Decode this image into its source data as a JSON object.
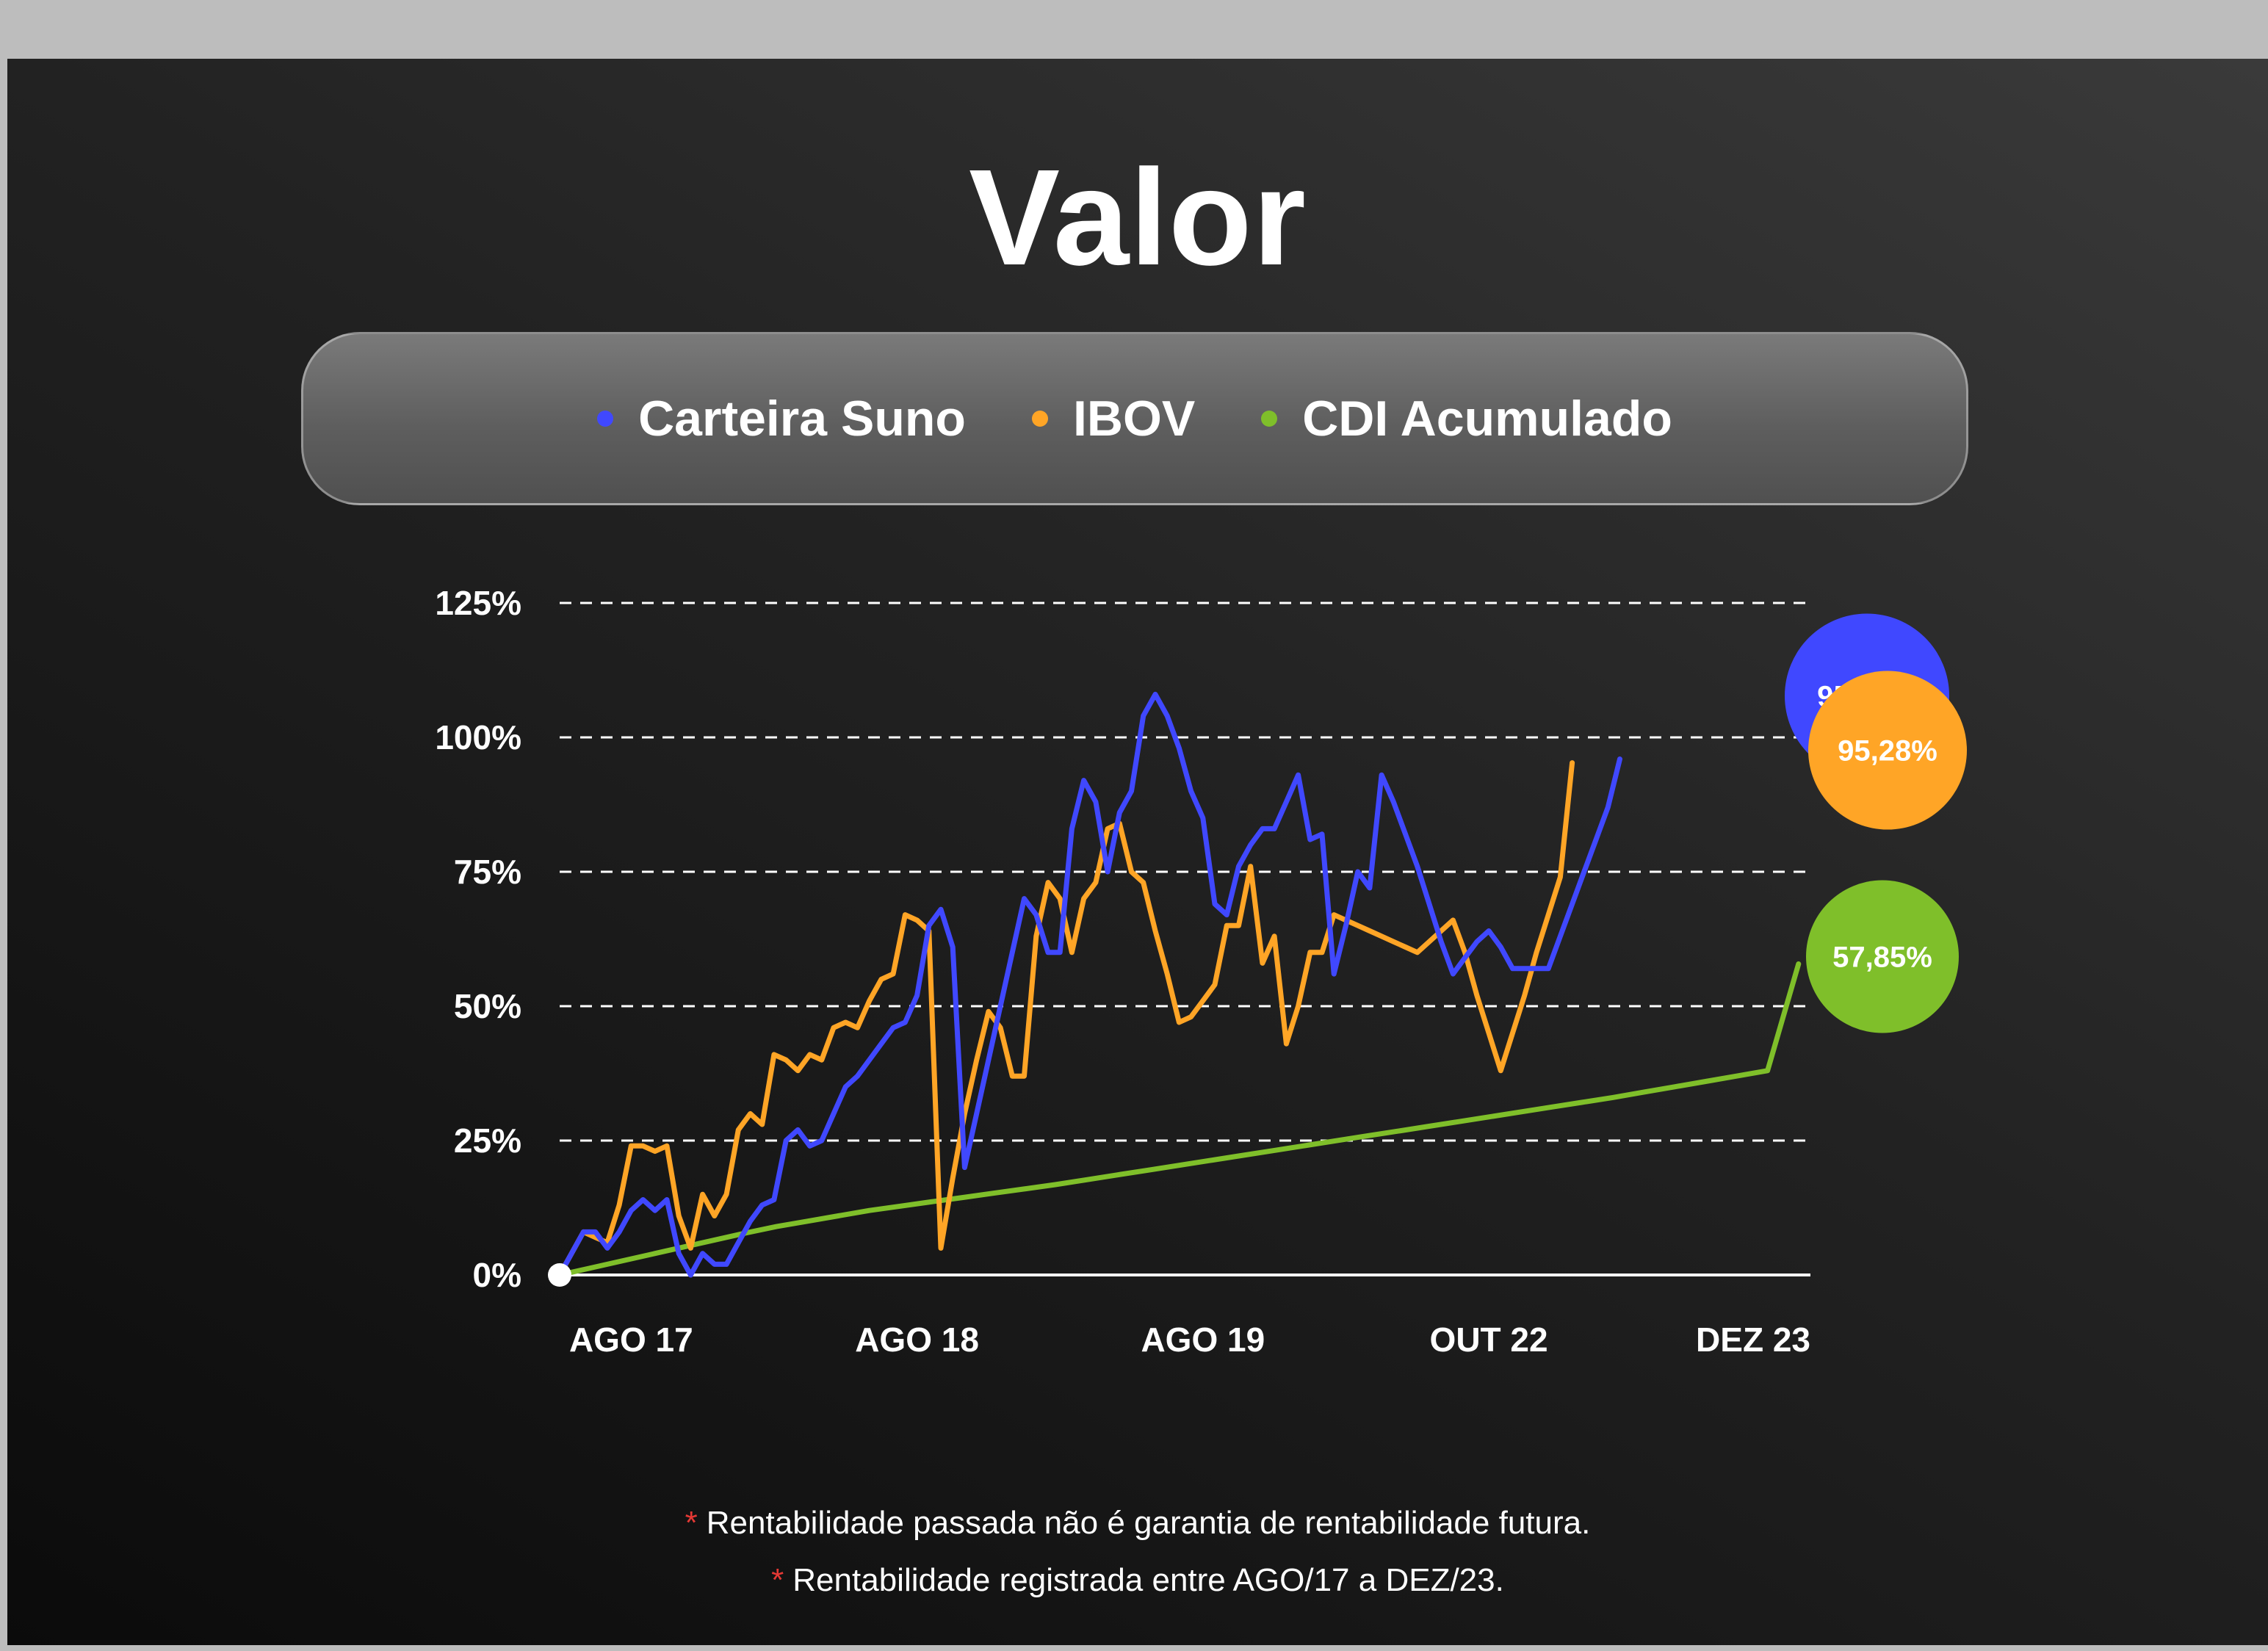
{
  "title": "Valor",
  "legend": [
    {
      "label": "Carteira Suno",
      "color": "#4048ff",
      "icon": "dot"
    },
    {
      "label": "IBOV",
      "color": "#ffa526",
      "icon": "dot"
    },
    {
      "label": "CDI Acumulado",
      "color": "#7fbf2a",
      "icon": "dot"
    }
  ],
  "footnotes": [
    {
      "star": "*",
      "text": "Rentabilidade passada não é garantia de rentabilidade futura."
    },
    {
      "star": "*",
      "text": "Rentabilidade registrada entre AGO/17 a DEZ/23."
    }
  ],
  "chart_data": {
    "type": "line",
    "ylim": [
      0,
      125
    ],
    "y_ticks": [
      "125%",
      "100%",
      "75%",
      "50%",
      "25%",
      "0%"
    ],
    "y_tick_values": [
      125,
      100,
      75,
      50,
      25,
      0
    ],
    "x_ticks": [
      "AGO 17",
      "AGO 18",
      "AGO 19",
      "OUT 22",
      "DEZ 23"
    ],
    "x_tick_index": [
      6,
      30,
      54,
      78,
      104
    ],
    "grid": "dashed horizontal",
    "series": [
      {
        "name": "Carteira Suno",
        "color": "#4048ff",
        "end_label": "95,97%",
        "values": [
          0,
          4,
          8,
          8,
          5,
          8,
          12,
          14,
          12,
          14,
          4,
          0,
          4,
          2,
          2,
          6,
          10,
          13,
          14,
          25,
          27,
          24,
          25,
          30,
          35,
          37,
          40,
          43,
          46,
          47,
          52,
          65,
          68,
          61,
          20,
          30,
          40,
          50,
          60,
          70,
          67,
          60,
          60,
          83,
          92,
          88,
          75,
          86,
          90,
          104,
          108,
          104,
          98,
          90,
          85,
          69,
          67,
          76,
          80,
          83,
          83,
          88,
          93,
          81,
          82,
          56,
          65,
          75,
          72,
          93,
          88,
          82,
          76,
          69,
          62,
          56,
          59,
          62,
          64,
          61,
          57,
          57,
          57,
          57,
          63,
          69,
          75,
          81,
          87,
          95.97
        ]
      },
      {
        "name": "IBOV",
        "color": "#ffa526",
        "end_label": "95,28%",
        "values": [
          0,
          4,
          8,
          7,
          6,
          13,
          24,
          24,
          23,
          24,
          11,
          5,
          15,
          11,
          15,
          27,
          30,
          28,
          41,
          40,
          38,
          41,
          40,
          46,
          47,
          46,
          51,
          55,
          56,
          67,
          66,
          64,
          5,
          18,
          30,
          40,
          49,
          46,
          37,
          37,
          63,
          73,
          70,
          60,
          70,
          73,
          83,
          84,
          75,
          73,
          64,
          56,
          47,
          48,
          51,
          54,
          65,
          65,
          76,
          58,
          63,
          43,
          50,
          60,
          60,
          67,
          66,
          65,
          64,
          63,
          62,
          61,
          60,
          62,
          64,
          66,
          60,
          52,
          45,
          38,
          45,
          52,
          60,
          67,
          74,
          95.28
        ]
      },
      {
        "name": "CDI Acumulado",
        "color": "#7fbf2a",
        "end_label": "57,85%",
        "values": [
          0,
          1.3,
          2.6,
          3.9,
          5.2,
          6.5,
          7.8,
          9.0,
          10.0,
          11.0,
          12.0,
          12.8,
          13.6,
          14.4,
          15.2,
          16.0,
          16.8,
          17.7,
          18.6,
          19.5,
          20.4,
          21.3,
          22.2,
          23.1,
          24.0,
          24.9,
          25.8,
          26.7,
          27.6,
          28.5,
          29.4,
          30.3,
          31.2,
          32.1,
          33.0,
          34.0,
          35.0,
          36.0,
          37.0,
          38.0,
          57.85
        ]
      }
    ]
  }
}
